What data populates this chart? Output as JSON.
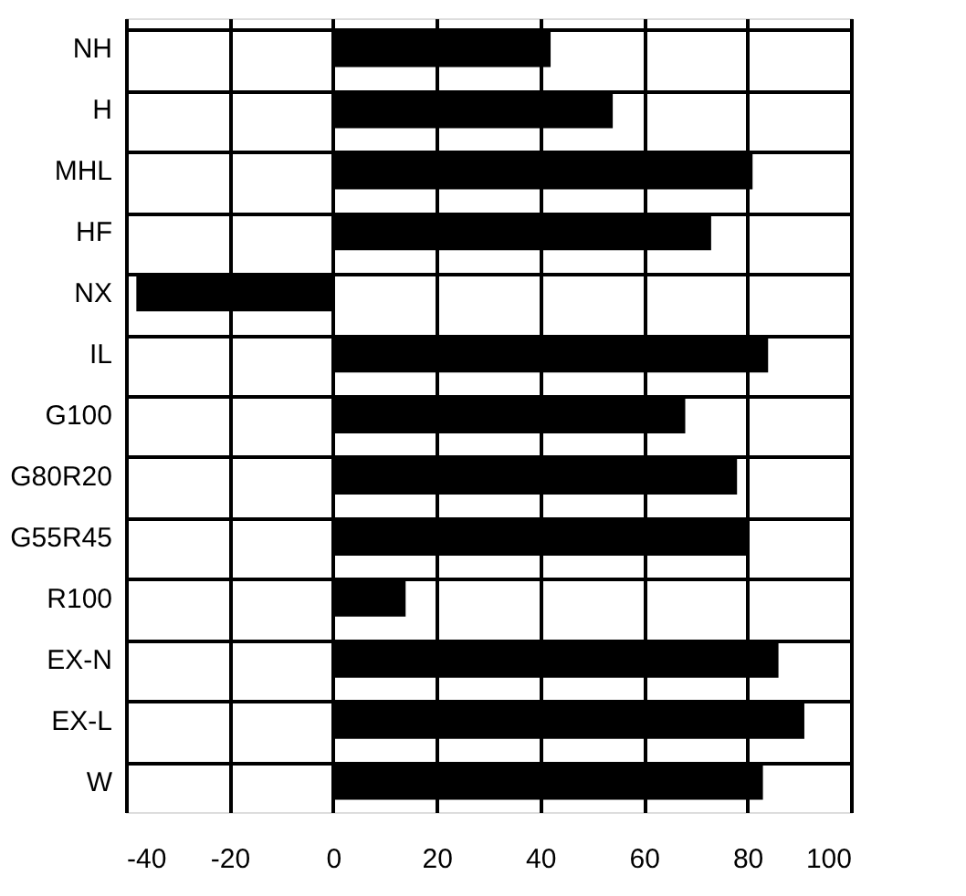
{
  "chart_data": {
    "type": "bar",
    "orientation": "horizontal",
    "categories": [
      "NH",
      "H",
      "MHL",
      "HF",
      "NX",
      "IL",
      "G100",
      "G80R20",
      "G55R45",
      "R100",
      "EX-N",
      "EX-L",
      "W"
    ],
    "values": [
      42,
      54,
      81,
      73,
      -38,
      84,
      68,
      78,
      80,
      14,
      86,
      91,
      83
    ],
    "color": "#000000",
    "xlim": [
      -40,
      100
    ],
    "xticks": [
      -40,
      -20,
      0,
      20,
      40,
      60,
      80,
      100
    ],
    "grid": true
  }
}
